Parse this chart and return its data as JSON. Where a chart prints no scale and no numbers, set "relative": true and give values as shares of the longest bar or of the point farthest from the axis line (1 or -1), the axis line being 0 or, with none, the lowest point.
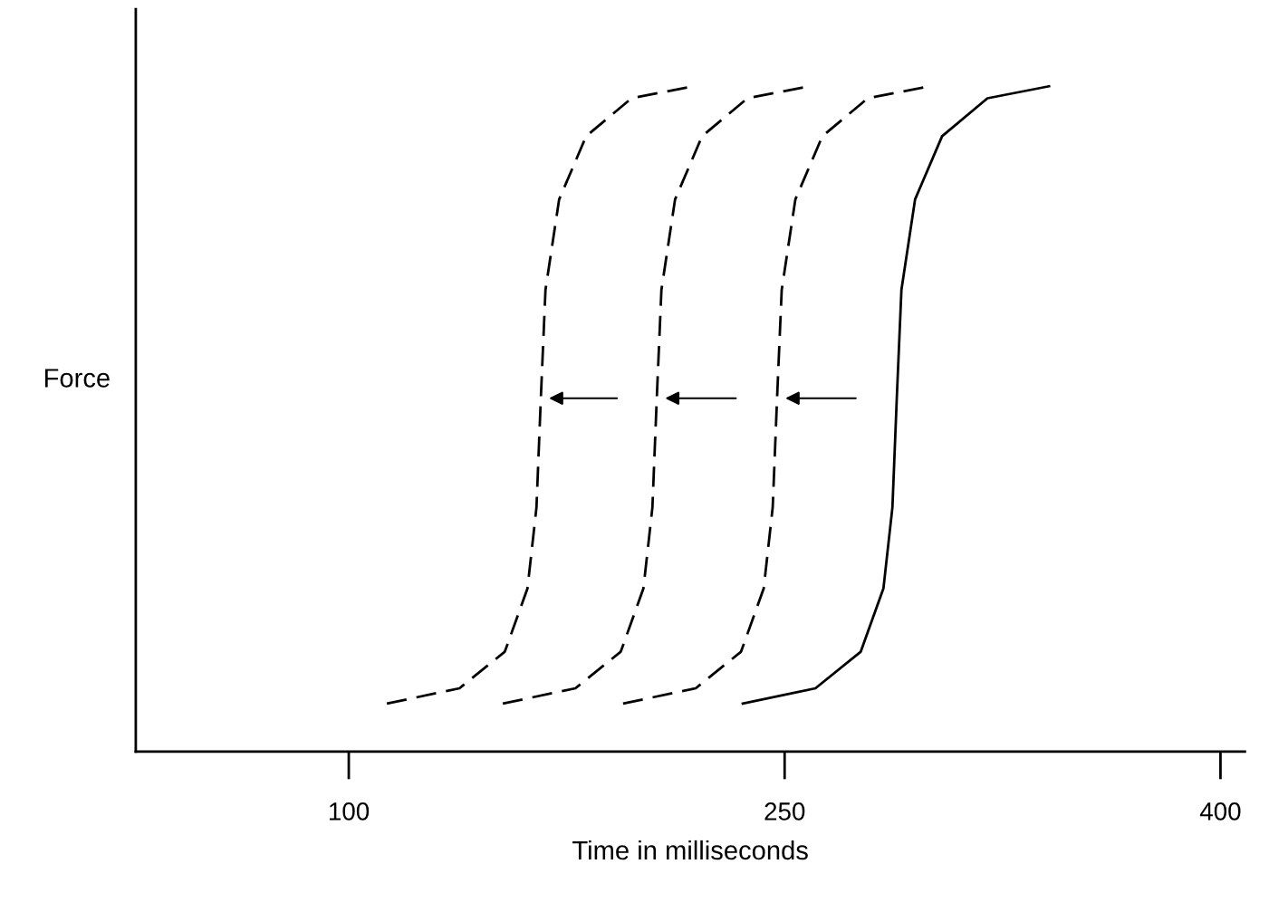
{
  "chart_data": {
    "type": "line",
    "xlabel": "Time in milliseconds",
    "ylabel": "Force",
    "relative": true,
    "xlim": [
      26.7,
      408.4
    ],
    "xticks": [
      100,
      250,
      400
    ],
    "grid": false,
    "legend": false,
    "marker": "none",
    "series": [
      {
        "color": "#000000",
        "line_style": "dashed",
        "x": [
          113.1,
          138.1,
          153.7,
          161.5,
          164.6,
          166.1,
          167.7,
          172.4,
          181.7,
          197.3,
          218.5
        ],
        "values": [
          0.072,
          0.095,
          0.15,
          0.245,
          0.367,
          0.531,
          0.694,
          0.83,
          0.925,
          0.982,
          1.0
        ]
      },
      {
        "color": "#000000",
        "line_style": "dashed",
        "x": [
          153.0,
          178.0,
          193.6,
          201.4,
          204.5,
          206.0,
          207.6,
          212.3,
          221.6,
          237.2,
          258.4
        ],
        "values": [
          0.072,
          0.095,
          0.15,
          0.245,
          0.367,
          0.531,
          0.694,
          0.83,
          0.925,
          0.982,
          1.0
        ]
      },
      {
        "color": "#000000",
        "line_style": "dashed",
        "x": [
          194.4,
          219.4,
          235.0,
          242.8,
          245.9,
          247.4,
          249.0,
          253.7,
          263.0,
          278.6,
          299.8
        ],
        "values": [
          0.072,
          0.095,
          0.15,
          0.245,
          0.367,
          0.531,
          0.694,
          0.83,
          0.925,
          0.982,
          1.0
        ]
      },
      {
        "color": "#000000",
        "line_style": "solid",
        "x": [
          235.6,
          260.6,
          276.2,
          284.0,
          287.1,
          288.6,
          290.2,
          294.9,
          304.2,
          319.8,
          341.0
        ],
        "values": [
          0.072,
          0.095,
          0.15,
          0.245,
          0.367,
          0.531,
          0.694,
          0.83,
          0.925,
          0.982,
          1.0
        ]
      }
    ]
  }
}
